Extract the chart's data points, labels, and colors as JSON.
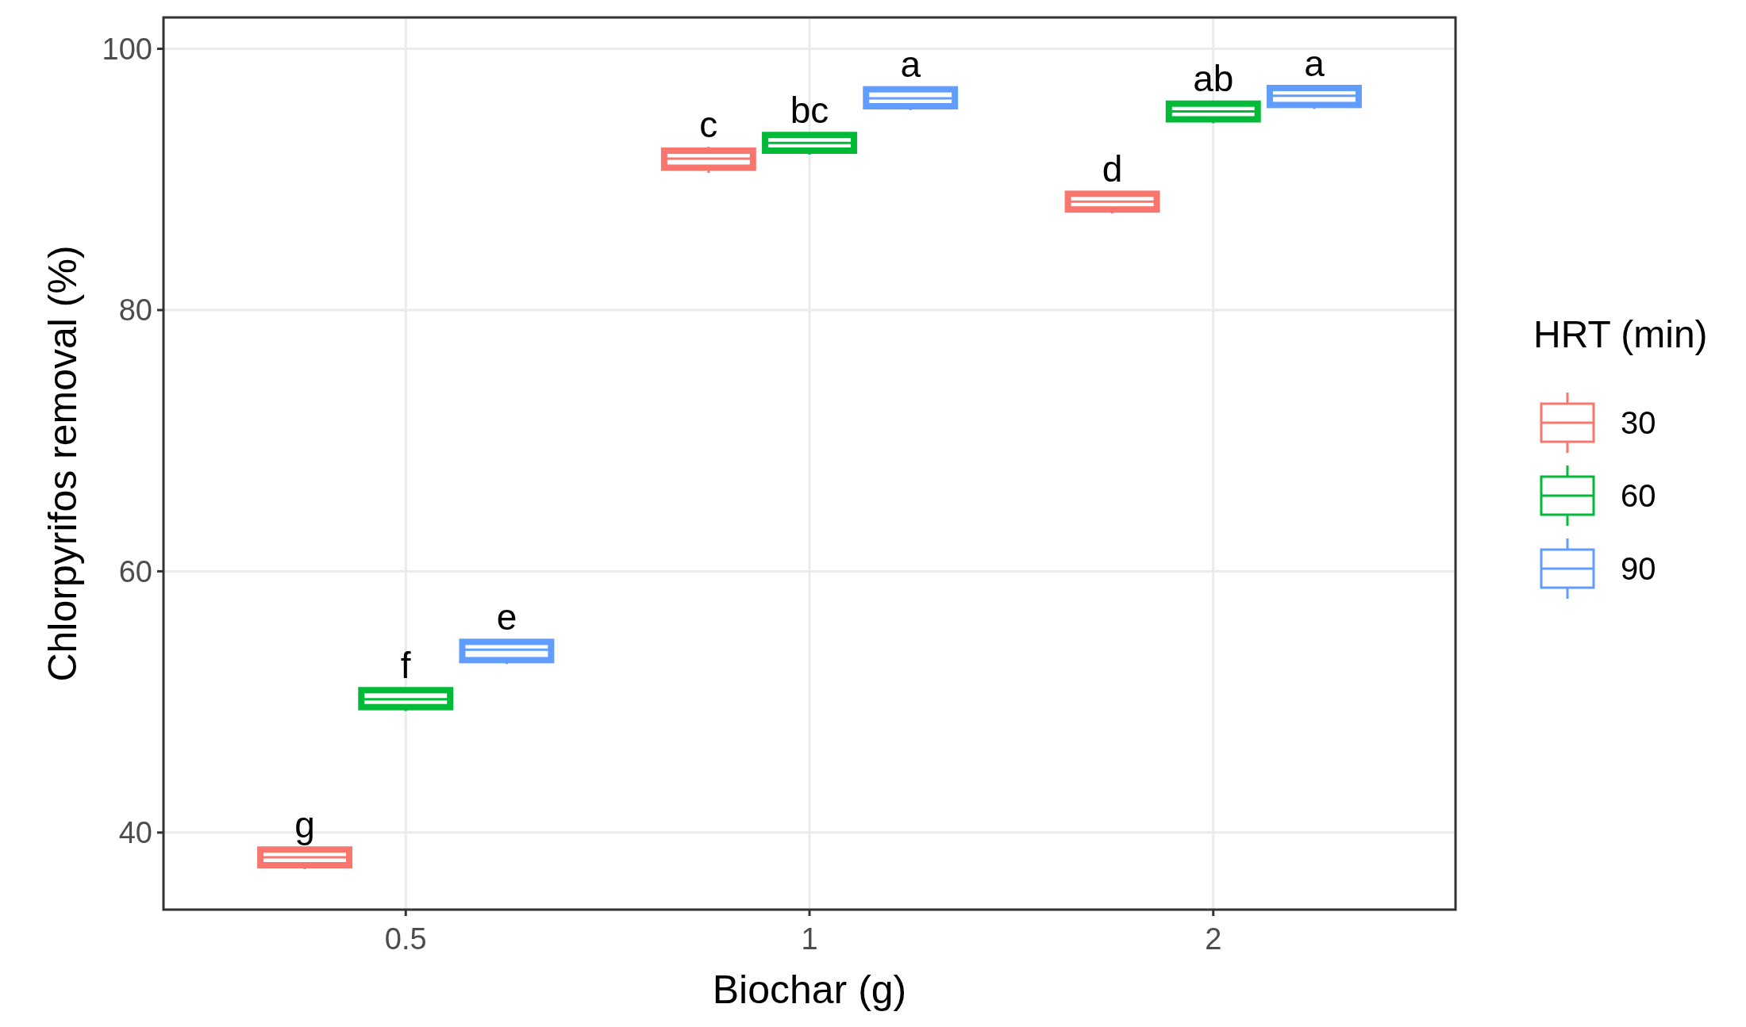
{
  "chart_data": {
    "type": "box",
    "xlabel": "Biochar (g)",
    "ylabel": "Chlorpyrifos removal (%)",
    "legend_title": "HRT (min)",
    "legend": "right",
    "grid": true,
    "categories": [
      "0.5",
      "1",
      "2"
    ],
    "ylim": [
      34.1,
      102.4
    ],
    "yticks": [
      40,
      60,
      80,
      100
    ],
    "series": [
      {
        "name": "30",
        "color": "#f8766d",
        "boxes": [
          {
            "low": 37.2,
            "q1": 37.5,
            "median": 38.1,
            "q3": 38.7,
            "high": 38.9
          },
          {
            "low": 90.5,
            "q1": 90.9,
            "median": 91.6,
            "q3": 92.2,
            "high": 92.5
          },
          {
            "low": 87.4,
            "q1": 87.7,
            "median": 88.3,
            "q3": 88.9,
            "high": 89.1
          }
        ]
      },
      {
        "name": "60",
        "color": "#00ba38",
        "boxes": [
          {
            "low": 49.3,
            "q1": 49.6,
            "median": 50.2,
            "q3": 50.9,
            "high": 51.1
          },
          {
            "low": 91.9,
            "q1": 92.2,
            "median": 92.8,
            "q3": 93.4,
            "high": 93.6
          },
          {
            "low": 94.3,
            "q1": 94.6,
            "median": 95.2,
            "q3": 95.8,
            "high": 96.0
          }
        ]
      },
      {
        "name": "90",
        "color": "#619cff",
        "boxes": [
          {
            "low": 52.9,
            "q1": 53.2,
            "median": 54.0,
            "q3": 54.6,
            "high": 54.8
          },
          {
            "low": 95.3,
            "q1": 95.6,
            "median": 96.2,
            "q3": 96.9,
            "high": 97.1
          },
          {
            "low": 95.4,
            "q1": 95.7,
            "median": 96.4,
            "q3": 97.0,
            "high": 97.2
          }
        ]
      }
    ],
    "annotations": [
      "g",
      "f",
      "e",
      "c",
      "bc",
      "a",
      "d",
      "ab",
      "a"
    ]
  }
}
